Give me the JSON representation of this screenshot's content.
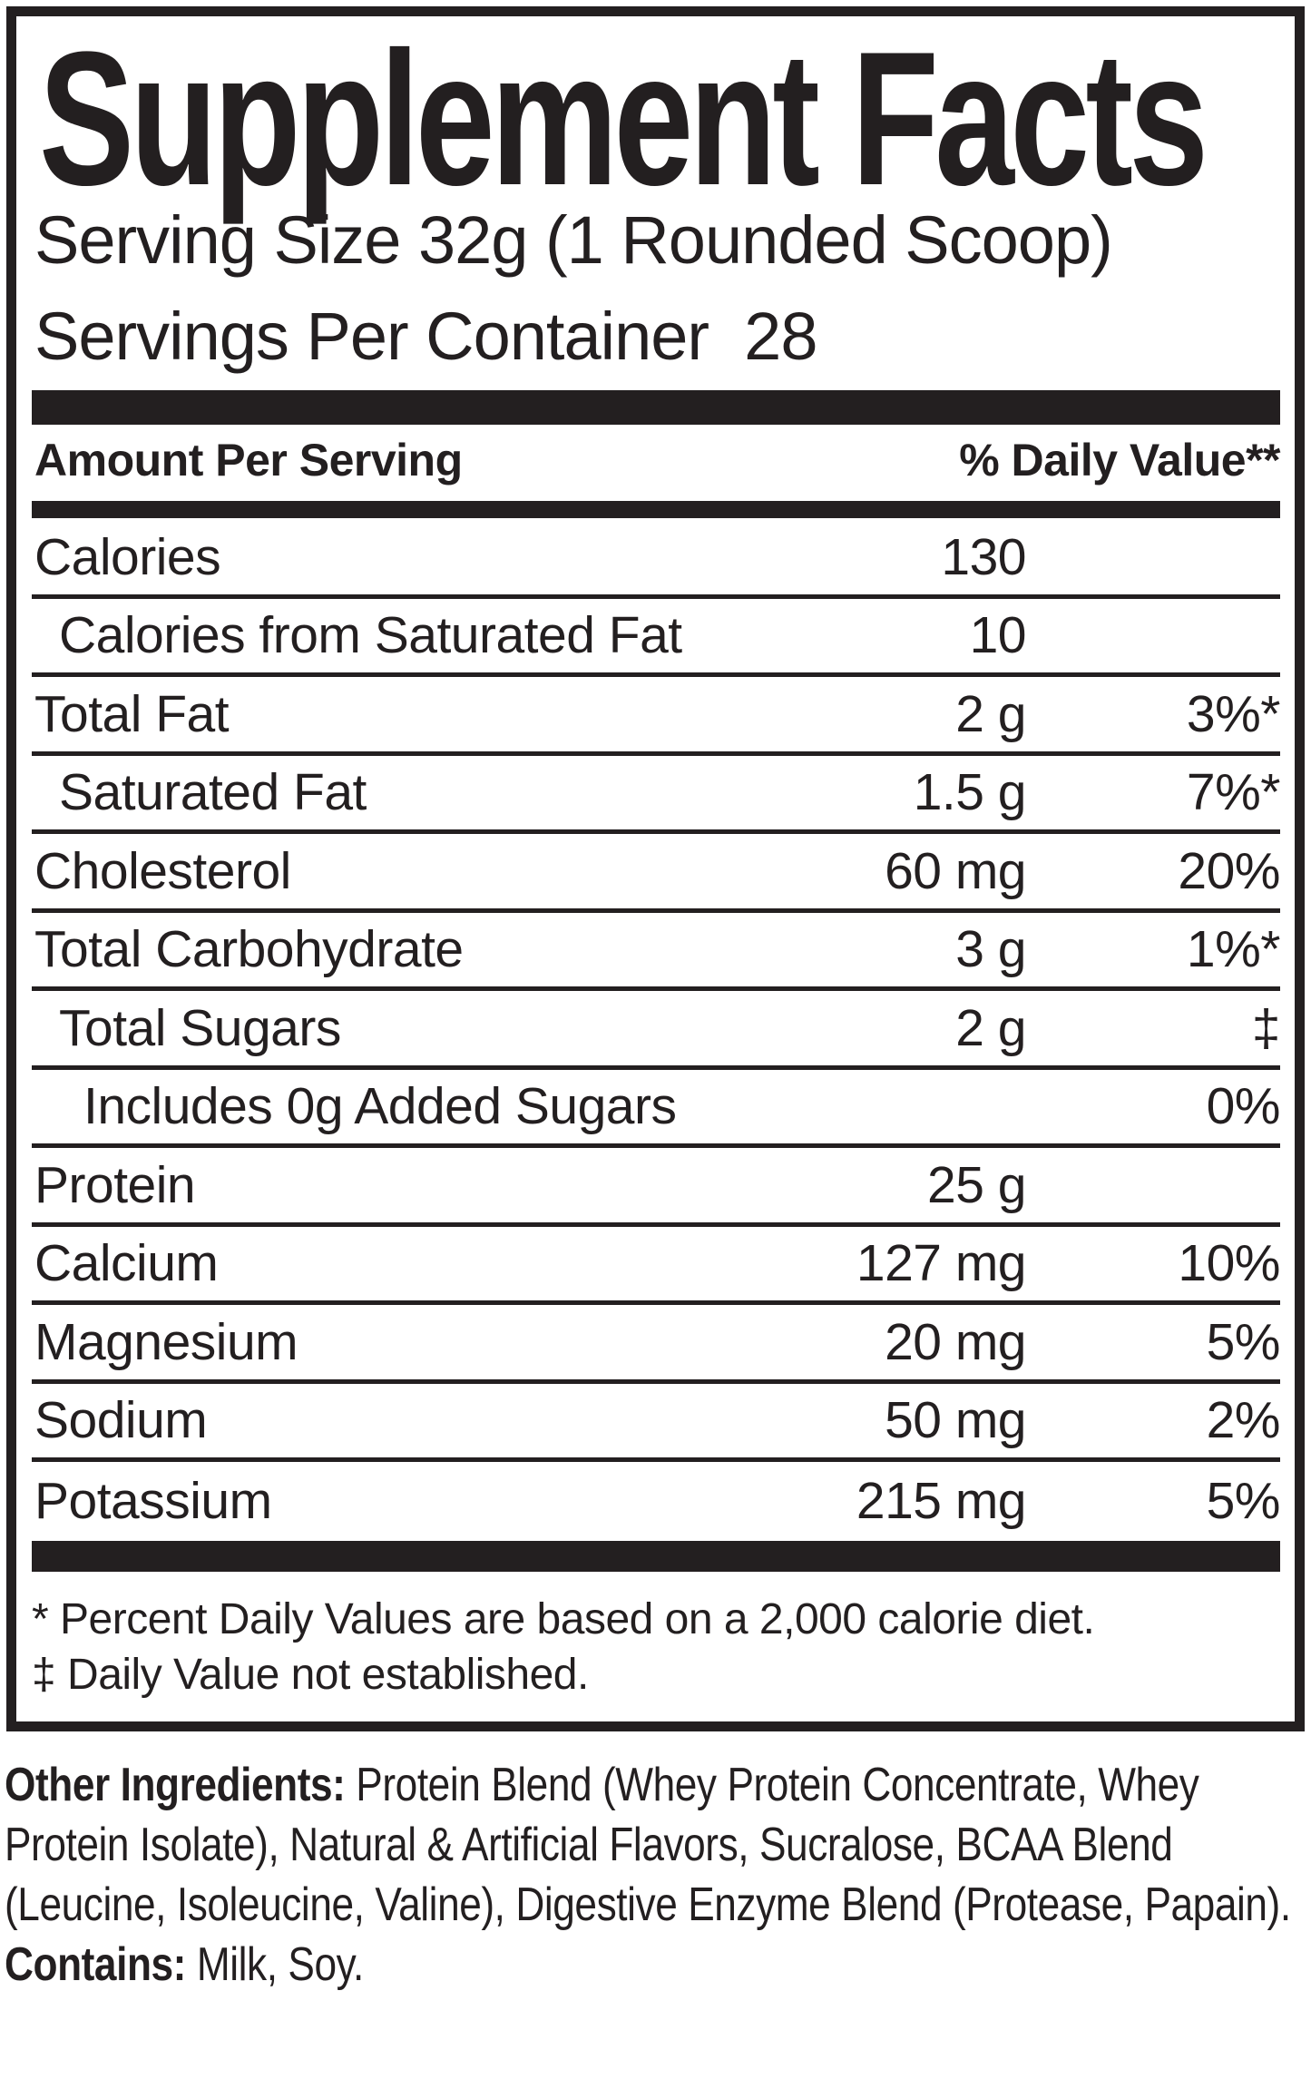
{
  "label": {
    "title": "Supplement Facts",
    "serving_size": "Serving Size 32g (1 Rounded Scoop)",
    "servings_per_container": "Servings Per Container  28",
    "column_headers": {
      "amount": "Amount Per Serving",
      "daily_value": "% Daily Value**"
    },
    "rows": [
      {
        "name": "Calories",
        "amount": "130",
        "dv": "",
        "indent": 0
      },
      {
        "name": "Calories from Saturated Fat",
        "amount": "10",
        "dv": "",
        "indent": 1
      },
      {
        "name": "Total Fat",
        "amount": "2 g",
        "dv": "3%*",
        "indent": 0
      },
      {
        "name": "Saturated Fat",
        "amount": "1.5 g",
        "dv": "7%*",
        "indent": 1
      },
      {
        "name": "Cholesterol",
        "amount": "60 mg",
        "dv": "20%",
        "indent": 0
      },
      {
        "name": "Total Carbohydrate",
        "amount": "3 g",
        "dv": "1%*",
        "indent": 0
      },
      {
        "name": "Total Sugars",
        "amount": "2 g",
        "dv": "‡",
        "indent": 1
      },
      {
        "name": "Includes 0g Added Sugars",
        "amount": "",
        "dv": "0%",
        "indent": 2
      },
      {
        "name": "Protein",
        "amount": "25 g",
        "dv": "",
        "indent": 0
      },
      {
        "name": "Calcium",
        "amount": "127 mg",
        "dv": "10%",
        "indent": 0
      },
      {
        "name": "Magnesium",
        "amount": "20 mg",
        "dv": "5%",
        "indent": 0
      },
      {
        "name": "Sodium",
        "amount": "50 mg",
        "dv": "2%",
        "indent": 0
      },
      {
        "name": "Potassium",
        "amount": "215 mg",
        "dv": "5%",
        "indent": 0
      }
    ],
    "footnotes": [
      "* Percent Daily Values are based on a 2,000 calorie diet.",
      "‡ Daily Value not established."
    ]
  },
  "other_ingredients": {
    "label": "Other Ingredients: ",
    "text": "Protein Blend (Whey Protein Concentrate, Whey Protein Isolate), Natural & Artificial Flavors, Sucralose, BCAA Blend (Leucine, Isoleucine, Valine), Digestive Enzyme Blend (Protease, Papain)."
  },
  "contains": {
    "label": "Contains: ",
    "text": "Milk, Soy."
  },
  "colors": {
    "ink": "#231f20",
    "background": "#ffffff"
  }
}
